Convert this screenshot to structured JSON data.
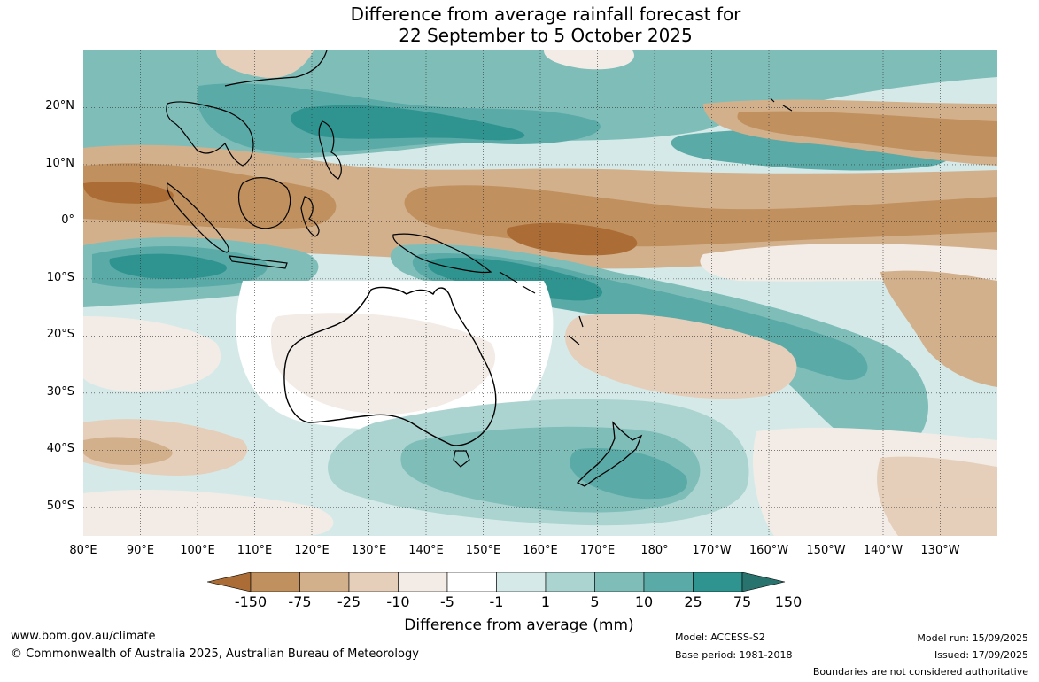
{
  "title": {
    "line1": "Difference from average rainfall forecast for",
    "line2": "22 September to 5 October 2025"
  },
  "map": {
    "lat_labels": [
      "20°N",
      "10°N",
      "0°",
      "10°S",
      "20°S",
      "30°S",
      "40°S",
      "50°S"
    ],
    "lon_labels": [
      "80°E",
      "90°E",
      "100°E",
      "110°E",
      "120°E",
      "130°E",
      "140°E",
      "150°E",
      "160°E",
      "170°E",
      "180°",
      "170°W",
      "160°W",
      "150°W",
      "140°W",
      "130°W"
    ],
    "extent": {
      "lon_min": 80,
      "lon_max": 240,
      "lat_min": -55,
      "lat_max": 30
    }
  },
  "colorbar": {
    "title": "Difference from average (mm)",
    "tick_labels": [
      "-150",
      "-75",
      "-25",
      "-10",
      "-5",
      "-1",
      "1",
      "5",
      "10",
      "25",
      "75",
      "150"
    ],
    "colors": [
      "#ab6d35",
      "#c0915f",
      "#d3b08c",
      "#e5cfba",
      "#f3ece6",
      "#ffffff",
      "#d5eae8",
      "#abd4d1",
      "#7fbdb9",
      "#5aaaa7",
      "#2f9490",
      "#29736e"
    ]
  },
  "footer": {
    "url": "www.bom.gov.au/climate",
    "copyright": "© Commonwealth of Australia 2025, Australian Bureau of Meteorology",
    "model": "Model: ACCESS-S2",
    "base_period": "Base period: 1981-2018",
    "model_run": "Model run: 15/09/2025",
    "issued": "Issued: 17/09/2025",
    "boundaries": "Boundaries are not considered authoritative"
  }
}
